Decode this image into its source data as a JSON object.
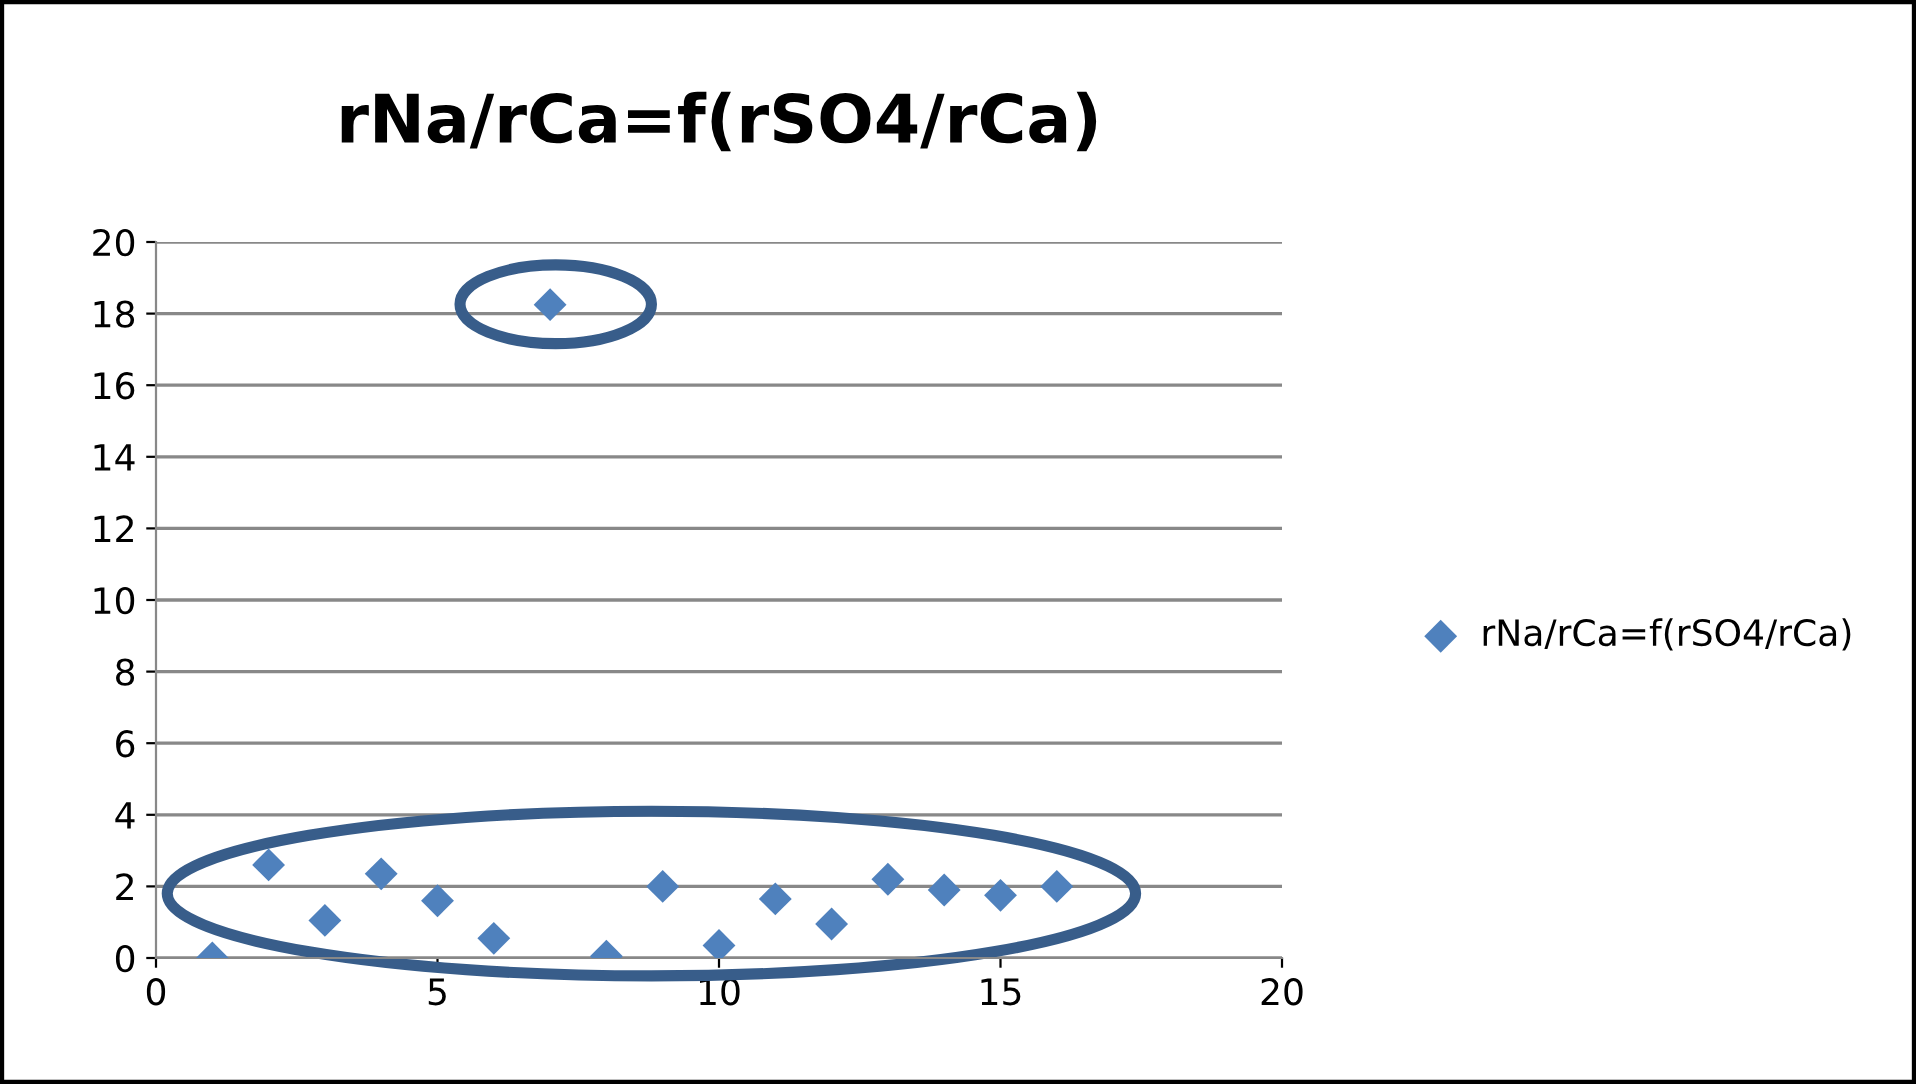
{
  "chart_data": {
    "type": "scatter",
    "title": "rNa/rCa=f(rSO4/rCa)",
    "x": [
      1,
      2,
      3,
      4,
      5,
      6,
      7,
      8,
      9,
      10,
      11,
      12,
      13,
      14,
      15,
      16
    ],
    "series": [
      {
        "name": "rNa/rCa=f(rSO4/rCa)",
        "color": "#4f81bd",
        "values": [
          0.0,
          2.6,
          1.05,
          2.35,
          1.6,
          0.55,
          18.25,
          0.05,
          2.0,
          0.35,
          1.65,
          0.95,
          2.2,
          1.9,
          1.75,
          2.0
        ]
      }
    ],
    "xlim": [
      0,
      20
    ],
    "xticks": [
      0,
      5,
      10,
      15,
      20
    ],
    "ylim": [
      0,
      20
    ],
    "yticks": [
      0,
      2,
      4,
      6,
      8,
      10,
      12,
      14,
      16,
      18,
      20
    ],
    "grid": "y",
    "legend": "right",
    "marker": "diamond"
  }
}
